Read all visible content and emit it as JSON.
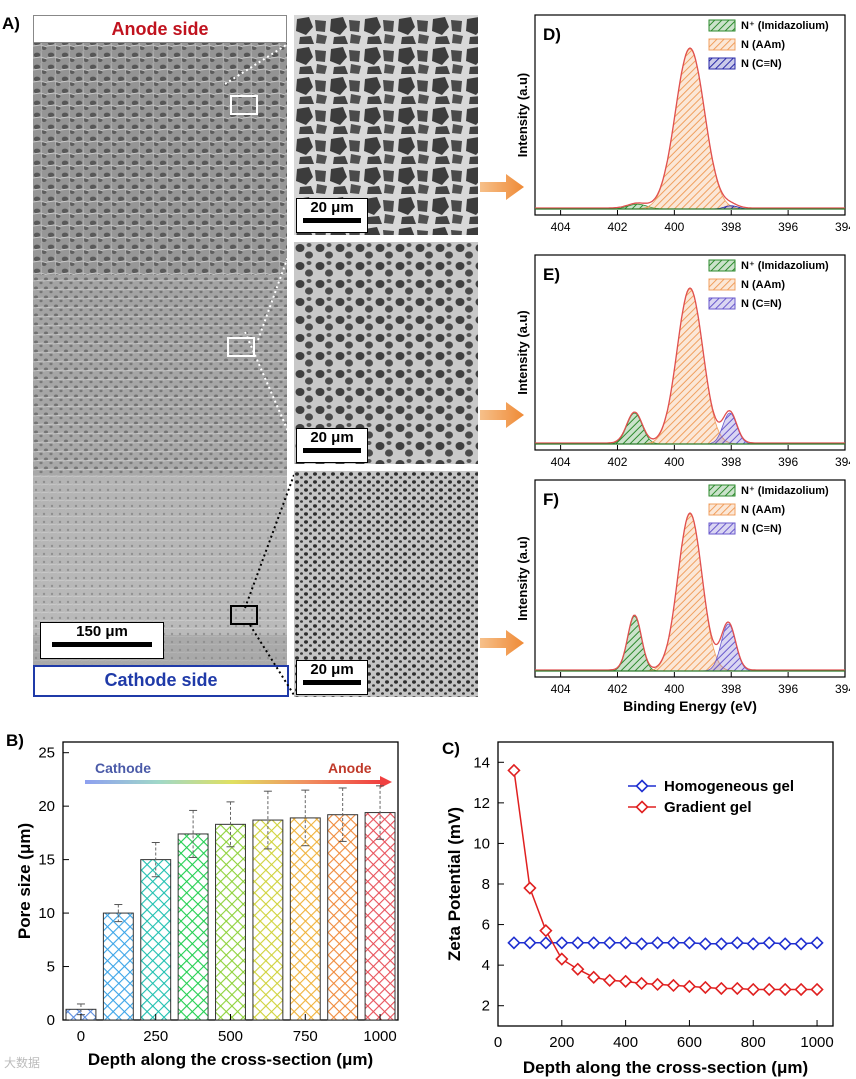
{
  "figure": {
    "panel_letters": {
      "A": "A)",
      "B": "B)",
      "C": "C)",
      "D": "D)",
      "E": "E)",
      "F": "F)"
    },
    "panel_a": {
      "anode_label": "Anode side",
      "cathode_label": "Cathode side",
      "main_scale": "150 μm",
      "zoom_scale_top": "20 μm",
      "zoom_scale_mid": "20 μm",
      "zoom_scale_bot": "20 μm",
      "colors": {
        "anode": "#c0121e",
        "cathode": "#1f3aa8"
      }
    },
    "watermark": "大数据"
  },
  "chart_data": [
    {
      "id": "D",
      "type": "area",
      "title": "D)",
      "xlabel": "",
      "ylabel": "Intensity (a.u)",
      "xlim": [
        404.9,
        394
      ],
      "x_ticks": [
        "404",
        "402",
        "400",
        "398",
        "396",
        "394"
      ],
      "legend": [
        {
          "name": "N⁺ (Imidazolium)",
          "color": "#2e8b2e"
        },
        {
          "name": "N (AAm)",
          "color": "#f0a060"
        },
        {
          "name": "N (C≡N)",
          "color": "#2a2aa8"
        }
      ],
      "peaks": [
        {
          "name": "N⁺ (Imidazolium)",
          "center": 401.3,
          "height": 0.03,
          "width": 0.55
        },
        {
          "name": "N (AAm)",
          "center": 399.45,
          "height": 1.0,
          "width": 0.85
        },
        {
          "name": "N (C≡N)",
          "center": 398.0,
          "height": 0.02,
          "width": 0.4
        }
      ]
    },
    {
      "id": "E",
      "type": "area",
      "title": "E)",
      "xlabel": "",
      "ylabel": "Intensity (a.u)",
      "xlim": [
        404.9,
        394
      ],
      "x_ticks": [
        "404",
        "402",
        "400",
        "398",
        "396",
        "394"
      ],
      "legend": [
        {
          "name": "N⁺ (Imidazolium)",
          "color": "#2e8b2e"
        },
        {
          "name": "N (AAm)",
          "color": "#f0a060"
        },
        {
          "name": "N (C≡N)",
          "color": "#6a5acd"
        }
      ],
      "peaks": [
        {
          "name": "N⁺ (Imidazolium)",
          "center": 401.4,
          "height": 0.2,
          "width": 0.45
        },
        {
          "name": "N (AAm)",
          "center": 399.45,
          "height": 1.0,
          "width": 0.75
        },
        {
          "name": "N (C≡N)",
          "center": 398.05,
          "height": 0.2,
          "width": 0.4
        }
      ]
    },
    {
      "id": "F",
      "type": "area",
      "title": "F)",
      "xlabel": "Binding Energy (eV)",
      "ylabel": "Intensity (a.u)",
      "xlim": [
        404.9,
        394
      ],
      "x_ticks": [
        "404",
        "402",
        "400",
        "398",
        "396",
        "394"
      ],
      "legend": [
        {
          "name": "N⁺ (Imidazolium)",
          "color": "#2e8b2e"
        },
        {
          "name": "N (AAm)",
          "color": "#f0a060"
        },
        {
          "name": "N (C≡N)",
          "color": "#6a5acd"
        }
      ],
      "peaks": [
        {
          "name": "N⁺ (Imidazolium)",
          "center": 401.4,
          "height": 0.35,
          "width": 0.4
        },
        {
          "name": "N (AAm)",
          "center": 399.45,
          "height": 1.0,
          "width": 0.7
        },
        {
          "name": "N (C≡N)",
          "center": 398.1,
          "height": 0.3,
          "width": 0.42
        }
      ]
    },
    {
      "id": "B",
      "type": "bar",
      "title": "B)",
      "xlabel": "Depth along the cross-section (μm)",
      "ylabel": "Pore size (μm)",
      "ylim": [
        0,
        26
      ],
      "y_ticks": [
        "0",
        "5",
        "10",
        "15",
        "20",
        "25"
      ],
      "x_tick_labels": [
        "0",
        "250",
        "500",
        "750",
        "1000"
      ],
      "x_tick_values": [
        0,
        250,
        500,
        750,
        1000
      ],
      "xlim": [
        -60,
        1060
      ],
      "x": [
        0,
        125,
        250,
        375,
        500,
        625,
        750,
        875,
        1000
      ],
      "values": [
        1.0,
        10.0,
        15.0,
        17.4,
        18.3,
        18.7,
        18.9,
        19.2,
        19.4
      ],
      "errors": [
        0.5,
        0.8,
        1.6,
        2.2,
        2.1,
        2.7,
        2.6,
        2.5,
        2.5
      ],
      "bar_colors": [
        "#5b8de0",
        "#3aa4e8",
        "#1ec0b0",
        "#22cf50",
        "#8ed23a",
        "#cfd23a",
        "#f0b23a",
        "#f08a3a",
        "#e8505a"
      ],
      "gradient_arrow": {
        "start_label": "Cathode",
        "end_label": "Anode"
      }
    },
    {
      "id": "C",
      "type": "line",
      "title": "C)",
      "xlabel": "Depth along the cross-section (μm)",
      "ylabel": "Zeta Potential (mV)",
      "xlim": [
        0,
        1050
      ],
      "ylim": [
        1,
        15
      ],
      "x_ticks": [
        "0",
        "200",
        "400",
        "600",
        "800",
        "1000"
      ],
      "x_tick_values": [
        0,
        200,
        400,
        600,
        800,
        1000
      ],
      "y_ticks": [
        "2",
        "4",
        "6",
        "8",
        "10",
        "12",
        "14"
      ],
      "y_tick_values": [
        2,
        4,
        6,
        8,
        10,
        12,
        14
      ],
      "legend_position": "top-right",
      "series": [
        {
          "name": "Homogeneous gel",
          "color": "#1f2fd0",
          "x": [
            50,
            100,
            150,
            200,
            250,
            300,
            350,
            400,
            450,
            500,
            550,
            600,
            650,
            700,
            750,
            800,
            850,
            900,
            950,
            1000
          ],
          "values": [
            5.1,
            5.1,
            5.1,
            5.1,
            5.1,
            5.1,
            5.1,
            5.1,
            5.05,
            5.1,
            5.1,
            5.1,
            5.05,
            5.05,
            5.1,
            5.05,
            5.1,
            5.05,
            5.05,
            5.1
          ]
        },
        {
          "name": "Gradient gel",
          "color": "#e02020",
          "x": [
            50,
            100,
            150,
            200,
            250,
            300,
            350,
            400,
            450,
            500,
            550,
            600,
            650,
            700,
            750,
            800,
            850,
            900,
            950,
            1000
          ],
          "values": [
            13.6,
            7.8,
            5.7,
            4.3,
            3.8,
            3.4,
            3.25,
            3.2,
            3.1,
            3.05,
            3.0,
            2.95,
            2.9,
            2.85,
            2.85,
            2.8,
            2.8,
            2.8,
            2.8,
            2.8
          ]
        }
      ]
    }
  ]
}
